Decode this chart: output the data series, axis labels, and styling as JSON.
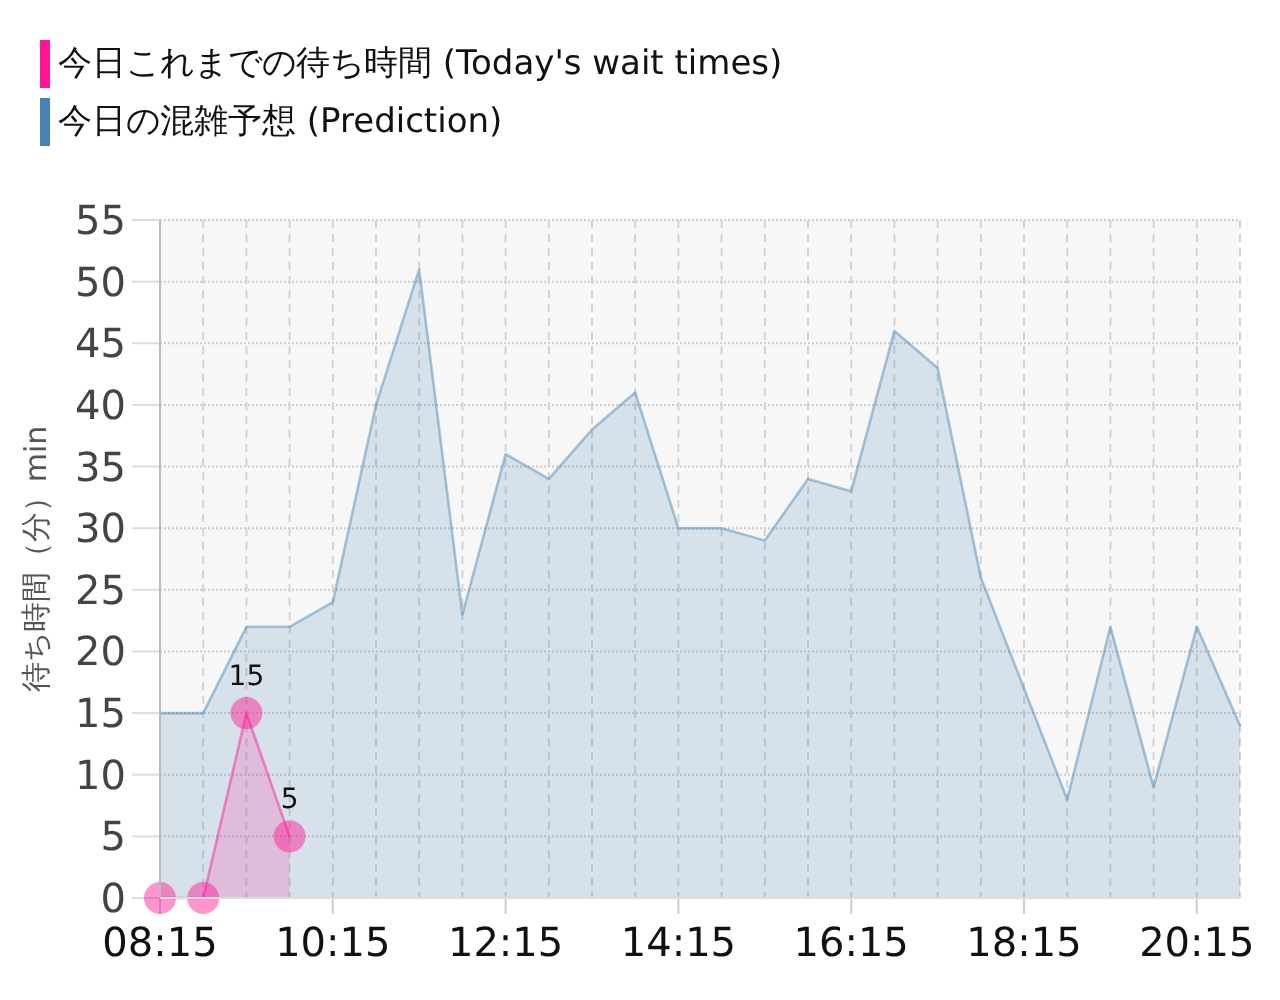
{
  "chart_data": {
    "type": "area",
    "ylabel": "待ち時間（分）min",
    "xlim": [
      8.25,
      20.75
    ],
    "xticks": [
      {
        "value": 8.25,
        "label": "08:15"
      },
      {
        "value": 8.75,
        "label": null
      },
      {
        "value": 9.25,
        "label": null
      },
      {
        "value": 9.75,
        "label": null
      },
      {
        "value": 10.25,
        "label": "10:15"
      },
      {
        "value": 10.75,
        "label": null
      },
      {
        "value": 11.25,
        "label": null
      },
      {
        "value": 11.75,
        "label": null
      },
      {
        "value": 12.25,
        "label": "12:15"
      },
      {
        "value": 12.75,
        "label": null
      },
      {
        "value": 13.25,
        "label": null
      },
      {
        "value": 13.75,
        "label": null
      },
      {
        "value": 14.25,
        "label": "14:15"
      },
      {
        "value": 14.75,
        "label": null
      },
      {
        "value": 15.25,
        "label": null
      },
      {
        "value": 15.75,
        "label": null
      },
      {
        "value": 16.25,
        "label": "16:15"
      },
      {
        "value": 16.75,
        "label": null
      },
      {
        "value": 17.25,
        "label": null
      },
      {
        "value": 17.75,
        "label": null
      },
      {
        "value": 18.25,
        "label": "18:15"
      },
      {
        "value": 18.75,
        "label": null
      },
      {
        "value": 19.25,
        "label": null
      },
      {
        "value": 19.75,
        "label": null
      },
      {
        "value": 20.25,
        "label": "20:15"
      },
      {
        "value": 20.75,
        "label": null
      }
    ],
    "ylim": [
      0,
      55
    ],
    "yticks": [
      0,
      5,
      10,
      15,
      20,
      25,
      30,
      35,
      40,
      45,
      50,
      55
    ],
    "grid": true,
    "legend": "top left",
    "series": [
      {
        "name": "今日これまでの待ち時間 (Today's wait times)",
        "color": "#ff1493",
        "marker": "circle",
        "x": [
          8.25,
          8.75,
          9.25,
          9.75
        ],
        "values": [
          0,
          0,
          15,
          5
        ],
        "value_labels": [
          null,
          null,
          "15",
          "5"
        ]
      },
      {
        "name": "今日の混雑予想 (Prediction)",
        "color": "#4682b4",
        "marker": "none",
        "x": [
          8.25,
          8.75,
          9.25,
          9.75,
          10.25,
          10.75,
          11.25,
          11.75,
          12.25,
          12.75,
          13.25,
          13.75,
          14.25,
          14.75,
          15.25,
          15.75,
          16.25,
          16.75,
          17.25,
          17.75,
          18.25,
          18.75,
          19.25,
          19.75,
          20.25,
          20.75
        ],
        "values": [
          15,
          15,
          22,
          22,
          24,
          40,
          51,
          23,
          36,
          34,
          38,
          41,
          30,
          30,
          29,
          34,
          33,
          46,
          43,
          26,
          17,
          8,
          22,
          9,
          22,
          14
        ]
      }
    ]
  }
}
